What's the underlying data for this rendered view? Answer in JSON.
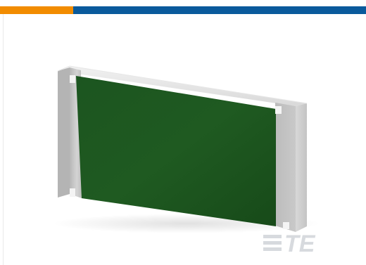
{
  "brand": {
    "logo_text": "TE",
    "logo_color": "#d7dade"
  },
  "colors": {
    "bar_orange": "#f28c00",
    "bar_blue": "#0a5a9c",
    "substrate_green": "#1f5a20",
    "ceramic_gray": "#c9c9c9"
  },
  "image": {
    "subject_icon": "chip-resistor-icon"
  }
}
